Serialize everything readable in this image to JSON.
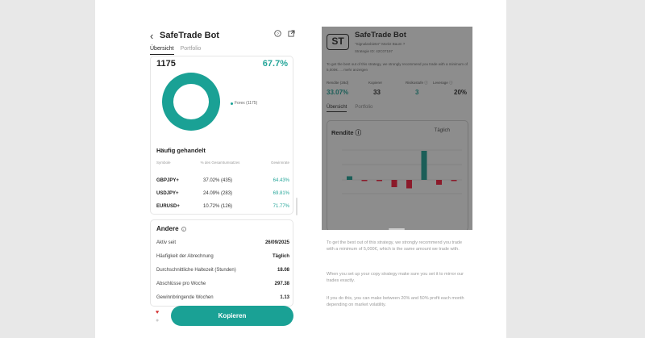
{
  "left": {
    "header": {
      "back_icon": "chevron-left",
      "title": "SafeTrade Bot",
      "help_icon": "question-circle",
      "share_icon": "external-link"
    },
    "tabs": [
      {
        "label": "Übersicht",
        "active": true
      },
      {
        "label": "Portfolio",
        "active": false
      }
    ],
    "summary": {
      "count": "1175",
      "percent": "67.7%"
    },
    "donut": {
      "legend_label": "Forex (1175)",
      "color": "#1aa195",
      "value_fraction": 1.0
    },
    "frequent": {
      "title": "Häufig gehandelt",
      "headers": {
        "symbol": "Symbole",
        "volume": "% des Gesamtumsatzes",
        "win": "Gewinnrate"
      },
      "rows": [
        {
          "symbol": "GBPJPY+",
          "volume": "37.02% (435)",
          "win": "64.43%"
        },
        {
          "symbol": "USDJPY+",
          "volume": "24.09% (283)",
          "win": "69.81%"
        },
        {
          "symbol": "EURUSD+",
          "volume": "10.72% (126)",
          "win": "71.77%"
        }
      ]
    },
    "other": {
      "title": "Andere",
      "rows": [
        {
          "k": "Aktiv seit",
          "v": "26/09/2025"
        },
        {
          "k": "Häufigkeit der Abrechnung",
          "v": "Täglich"
        },
        {
          "k": "Durchschnittliche Haltezeit (Stunden)",
          "v": "18.08"
        },
        {
          "k": "Abschlüsse pro Woche",
          "v": "297.38"
        },
        {
          "k": "Gewinnbringende Wochen",
          "v": "1.13"
        }
      ]
    },
    "copy_button": "Kopieren"
  },
  "right": {
    "logo_text": "ST",
    "title": "SafeTrade Bot",
    "subtitle": "\"Signalanbieter\"   Moritz Baum ?",
    "subtitle2": "Strategie ID: 42C07197",
    "description": "To get the best out of this strategy, we strongly recommend you trade with a minimum of 5,000€. ... mehr anzeigen",
    "stats": [
      {
        "label": "Rendite (28d)",
        "value": "33.07%"
      },
      {
        "label": "Kopierer",
        "value": "33"
      },
      {
        "label": "Risikostufe ⓘ",
        "value": "3"
      },
      {
        "label": "Leverage ⓘ",
        "value": "20%"
      }
    ],
    "tabs": [
      "Übersicht",
      "Portfolio"
    ],
    "chart_card": {
      "title": "Rendite ⓘ",
      "period": "Täglich"
    },
    "chart_data": {
      "type": "bar",
      "categories": [
        "",
        "",
        "",
        "",
        "",
        "",
        "",
        ""
      ],
      "values": [
        0.3,
        -0.1,
        -0.1,
        -0.6,
        -0.7,
        2.4,
        -0.4,
        -0.1
      ],
      "colors": {
        "positive": "#1b5e58",
        "negative": "#8b1a2a"
      },
      "xlabel": "",
      "ylabel": ""
    },
    "sheet": {
      "p1": "To get the best out of this strategy, we strongly recommend you trade with a minimum of 5,000€, which is the same amount we trade with.",
      "p2": "When you set up your copy strategy make sure you set it to mirror our trades exactly.",
      "p3": "If you do this, you can make between 20% and 50% profit each month depending on market volatility."
    }
  }
}
